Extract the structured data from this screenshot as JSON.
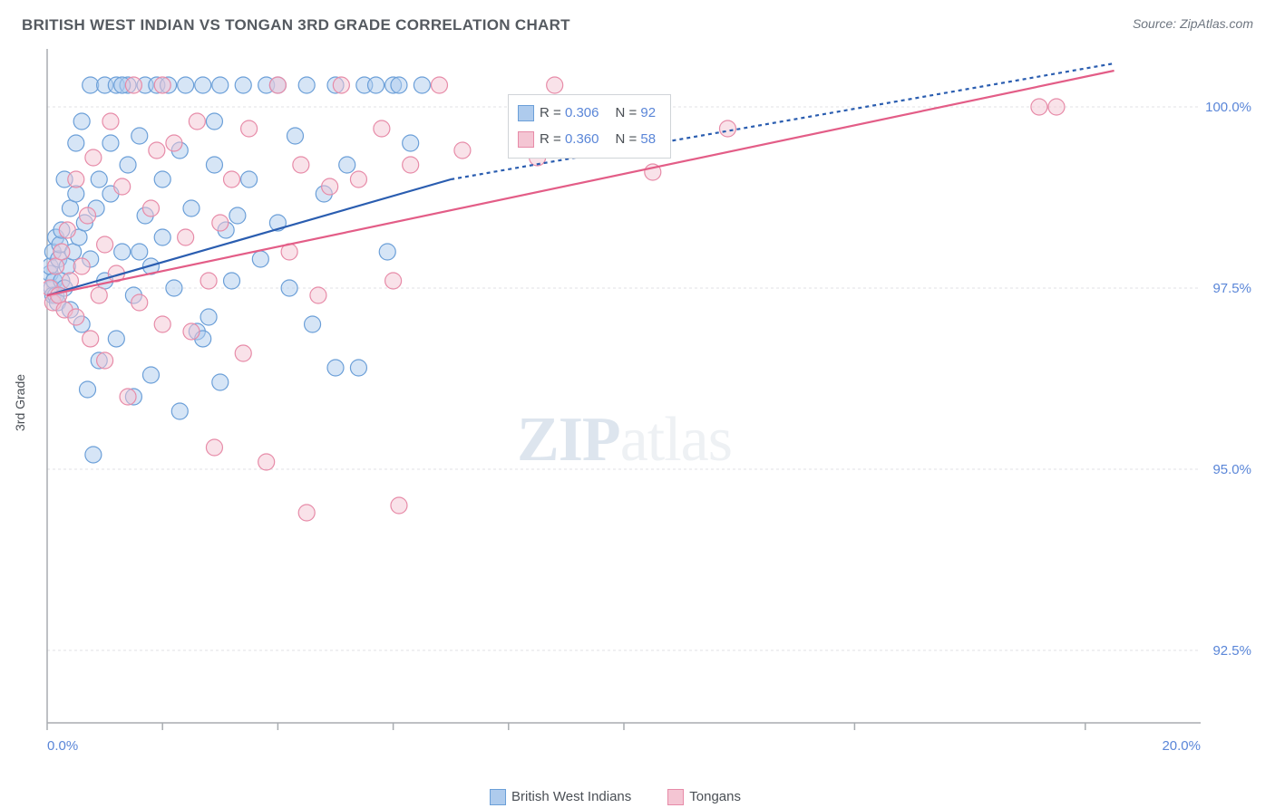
{
  "title": "BRITISH WEST INDIAN VS TONGAN 3RD GRADE CORRELATION CHART",
  "source": "Source: ZipAtlas.com",
  "ylabel": "3rd Grade",
  "watermark": {
    "main": "ZIP",
    "sub": "atlas"
  },
  "chart": {
    "type": "scatter-with-regression",
    "xlim": [
      0,
      20
    ],
    "ylim": [
      91.5,
      100.8
    ],
    "x_ticks": [
      0,
      2,
      4,
      6,
      8,
      10,
      14,
      18
    ],
    "x_tick_labels": {
      "0": "0.0%",
      "20": "20.0%"
    },
    "y_ticks": [
      92.5,
      95.0,
      97.5,
      100.0
    ],
    "y_tick_labels": [
      "92.5%",
      "95.0%",
      "97.5%",
      "100.0%"
    ],
    "grid_color": "#e0e2e4",
    "axis_color": "#a8acb0",
    "background_color": "#ffffff",
    "marker_radius": 9,
    "marker_opacity": 0.5,
    "line_width": 2.2,
    "dash_pattern": "4 4"
  },
  "series": [
    {
      "name": "British West Indians",
      "color_fill": "#aecbed",
      "color_stroke": "#6b9fd8",
      "line_color": "#2a5db0",
      "R": "0.306",
      "N": "92",
      "regression": {
        "x1": 0,
        "y1": 97.4,
        "x2": 7.0,
        "y2": 99.0,
        "x3": 18.5,
        "y3": 100.6
      },
      "points": [
        [
          0.05,
          97.7
        ],
        [
          0.05,
          97.8
        ],
        [
          0.08,
          97.5
        ],
        [
          0.1,
          97.4
        ],
        [
          0.1,
          98.0
        ],
        [
          0.12,
          97.6
        ],
        [
          0.15,
          97.4
        ],
        [
          0.15,
          98.2
        ],
        [
          0.18,
          97.3
        ],
        [
          0.2,
          97.9
        ],
        [
          0.22,
          98.1
        ],
        [
          0.25,
          97.6
        ],
        [
          0.25,
          98.3
        ],
        [
          0.3,
          97.5
        ],
        [
          0.3,
          99.0
        ],
        [
          0.35,
          97.8
        ],
        [
          0.4,
          98.6
        ],
        [
          0.4,
          97.2
        ],
        [
          0.45,
          98.0
        ],
        [
          0.5,
          98.8
        ],
        [
          0.5,
          99.5
        ],
        [
          0.55,
          98.2
        ],
        [
          0.6,
          97.0
        ],
        [
          0.6,
          99.8
        ],
        [
          0.65,
          98.4
        ],
        [
          0.7,
          96.1
        ],
        [
          0.75,
          97.9
        ],
        [
          0.75,
          100.3
        ],
        [
          0.8,
          95.2
        ],
        [
          0.85,
          98.6
        ],
        [
          0.9,
          99.0
        ],
        [
          0.9,
          96.5
        ],
        [
          1.0,
          100.3
        ],
        [
          1.0,
          97.6
        ],
        [
          1.1,
          98.8
        ],
        [
          1.1,
          99.5
        ],
        [
          1.2,
          96.8
        ],
        [
          1.2,
          100.3
        ],
        [
          1.3,
          98.0
        ],
        [
          1.4,
          99.2
        ],
        [
          1.4,
          100.3
        ],
        [
          1.5,
          96.0
        ],
        [
          1.5,
          97.4
        ],
        [
          1.6,
          99.6
        ],
        [
          1.7,
          98.5
        ],
        [
          1.7,
          100.3
        ],
        [
          1.8,
          96.3
        ],
        [
          1.8,
          97.8
        ],
        [
          1.9,
          100.3
        ],
        [
          2.0,
          99.0
        ],
        [
          2.0,
          98.2
        ],
        [
          2.1,
          100.3
        ],
        [
          2.2,
          97.5
        ],
        [
          2.3,
          95.8
        ],
        [
          2.3,
          99.4
        ],
        [
          2.4,
          100.3
        ],
        [
          2.5,
          98.6
        ],
        [
          2.6,
          96.9
        ],
        [
          2.7,
          100.3
        ],
        [
          2.8,
          97.1
        ],
        [
          2.9,
          99.8
        ],
        [
          3.0,
          100.3
        ],
        [
          3.0,
          96.2
        ],
        [
          3.1,
          98.3
        ],
        [
          3.2,
          97.6
        ],
        [
          3.4,
          100.3
        ],
        [
          3.5,
          99.0
        ],
        [
          3.7,
          97.9
        ],
        [
          3.8,
          100.3
        ],
        [
          4.0,
          98.4
        ],
        [
          4.0,
          100.3
        ],
        [
          4.2,
          97.5
        ],
        [
          4.3,
          99.6
        ],
        [
          4.5,
          100.3
        ],
        [
          4.6,
          97.0
        ],
        [
          4.8,
          98.8
        ],
        [
          5.0,
          100.3
        ],
        [
          5.0,
          96.4
        ],
        [
          5.2,
          99.2
        ],
        [
          5.4,
          96.4
        ],
        [
          5.5,
          100.3
        ],
        [
          5.7,
          100.3
        ],
        [
          5.9,
          98.0
        ],
        [
          6.0,
          100.3
        ],
        [
          6.1,
          100.3
        ],
        [
          6.3,
          99.5
        ],
        [
          6.5,
          100.3
        ],
        [
          3.3,
          98.5
        ],
        [
          2.9,
          99.2
        ],
        [
          1.6,
          98.0
        ],
        [
          1.3,
          100.3
        ],
        [
          2.7,
          96.8
        ]
      ]
    },
    {
      "name": "Tongans",
      "color_fill": "#f4c5d3",
      "color_stroke": "#e78ba8",
      "line_color": "#e35d87",
      "R": "0.360",
      "N": "58",
      "regression": {
        "x1": 0,
        "y1": 97.4,
        "x2": 18.5,
        "y2": 100.5
      },
      "points": [
        [
          0.05,
          97.5
        ],
        [
          0.1,
          97.3
        ],
        [
          0.15,
          97.8
        ],
        [
          0.2,
          97.4
        ],
        [
          0.25,
          98.0
        ],
        [
          0.3,
          97.2
        ],
        [
          0.35,
          98.3
        ],
        [
          0.4,
          97.6
        ],
        [
          0.5,
          97.1
        ],
        [
          0.5,
          99.0
        ],
        [
          0.6,
          97.8
        ],
        [
          0.7,
          98.5
        ],
        [
          0.75,
          96.8
        ],
        [
          0.8,
          99.3
        ],
        [
          0.9,
          97.4
        ],
        [
          1.0,
          98.1
        ],
        [
          1.0,
          96.5
        ],
        [
          1.1,
          99.8
        ],
        [
          1.2,
          97.7
        ],
        [
          1.3,
          98.9
        ],
        [
          1.4,
          96.0
        ],
        [
          1.5,
          100.3
        ],
        [
          1.6,
          97.3
        ],
        [
          1.8,
          98.6
        ],
        [
          1.9,
          99.4
        ],
        [
          2.0,
          97.0
        ],
        [
          2.0,
          100.3
        ],
        [
          2.2,
          99.5
        ],
        [
          2.4,
          98.2
        ],
        [
          2.5,
          96.9
        ],
        [
          2.6,
          99.8
        ],
        [
          2.8,
          97.6
        ],
        [
          2.9,
          95.3
        ],
        [
          3.0,
          98.4
        ],
        [
          3.2,
          99.0
        ],
        [
          3.4,
          96.6
        ],
        [
          3.5,
          99.7
        ],
        [
          3.8,
          95.1
        ],
        [
          4.0,
          100.3
        ],
        [
          4.2,
          98.0
        ],
        [
          4.4,
          99.2
        ],
        [
          4.7,
          97.4
        ],
        [
          4.9,
          98.9
        ],
        [
          5.1,
          100.3
        ],
        [
          5.4,
          99.0
        ],
        [
          5.8,
          99.7
        ],
        [
          6.0,
          97.6
        ],
        [
          6.1,
          94.5
        ],
        [
          6.3,
          99.2
        ],
        [
          6.8,
          100.3
        ],
        [
          7.2,
          99.4
        ],
        [
          4.5,
          94.4
        ],
        [
          8.5,
          99.3
        ],
        [
          8.8,
          100.3
        ],
        [
          10.5,
          99.1
        ],
        [
          11.8,
          99.7
        ],
        [
          17.2,
          100.0
        ],
        [
          17.5,
          100.0
        ]
      ]
    }
  ],
  "top_legend": {
    "rows": [
      {
        "series": 0,
        "R_label": "R = ",
        "N_label": "N = "
      },
      {
        "series": 1,
        "R_label": "R = ",
        "N_label": "N = "
      }
    ]
  }
}
